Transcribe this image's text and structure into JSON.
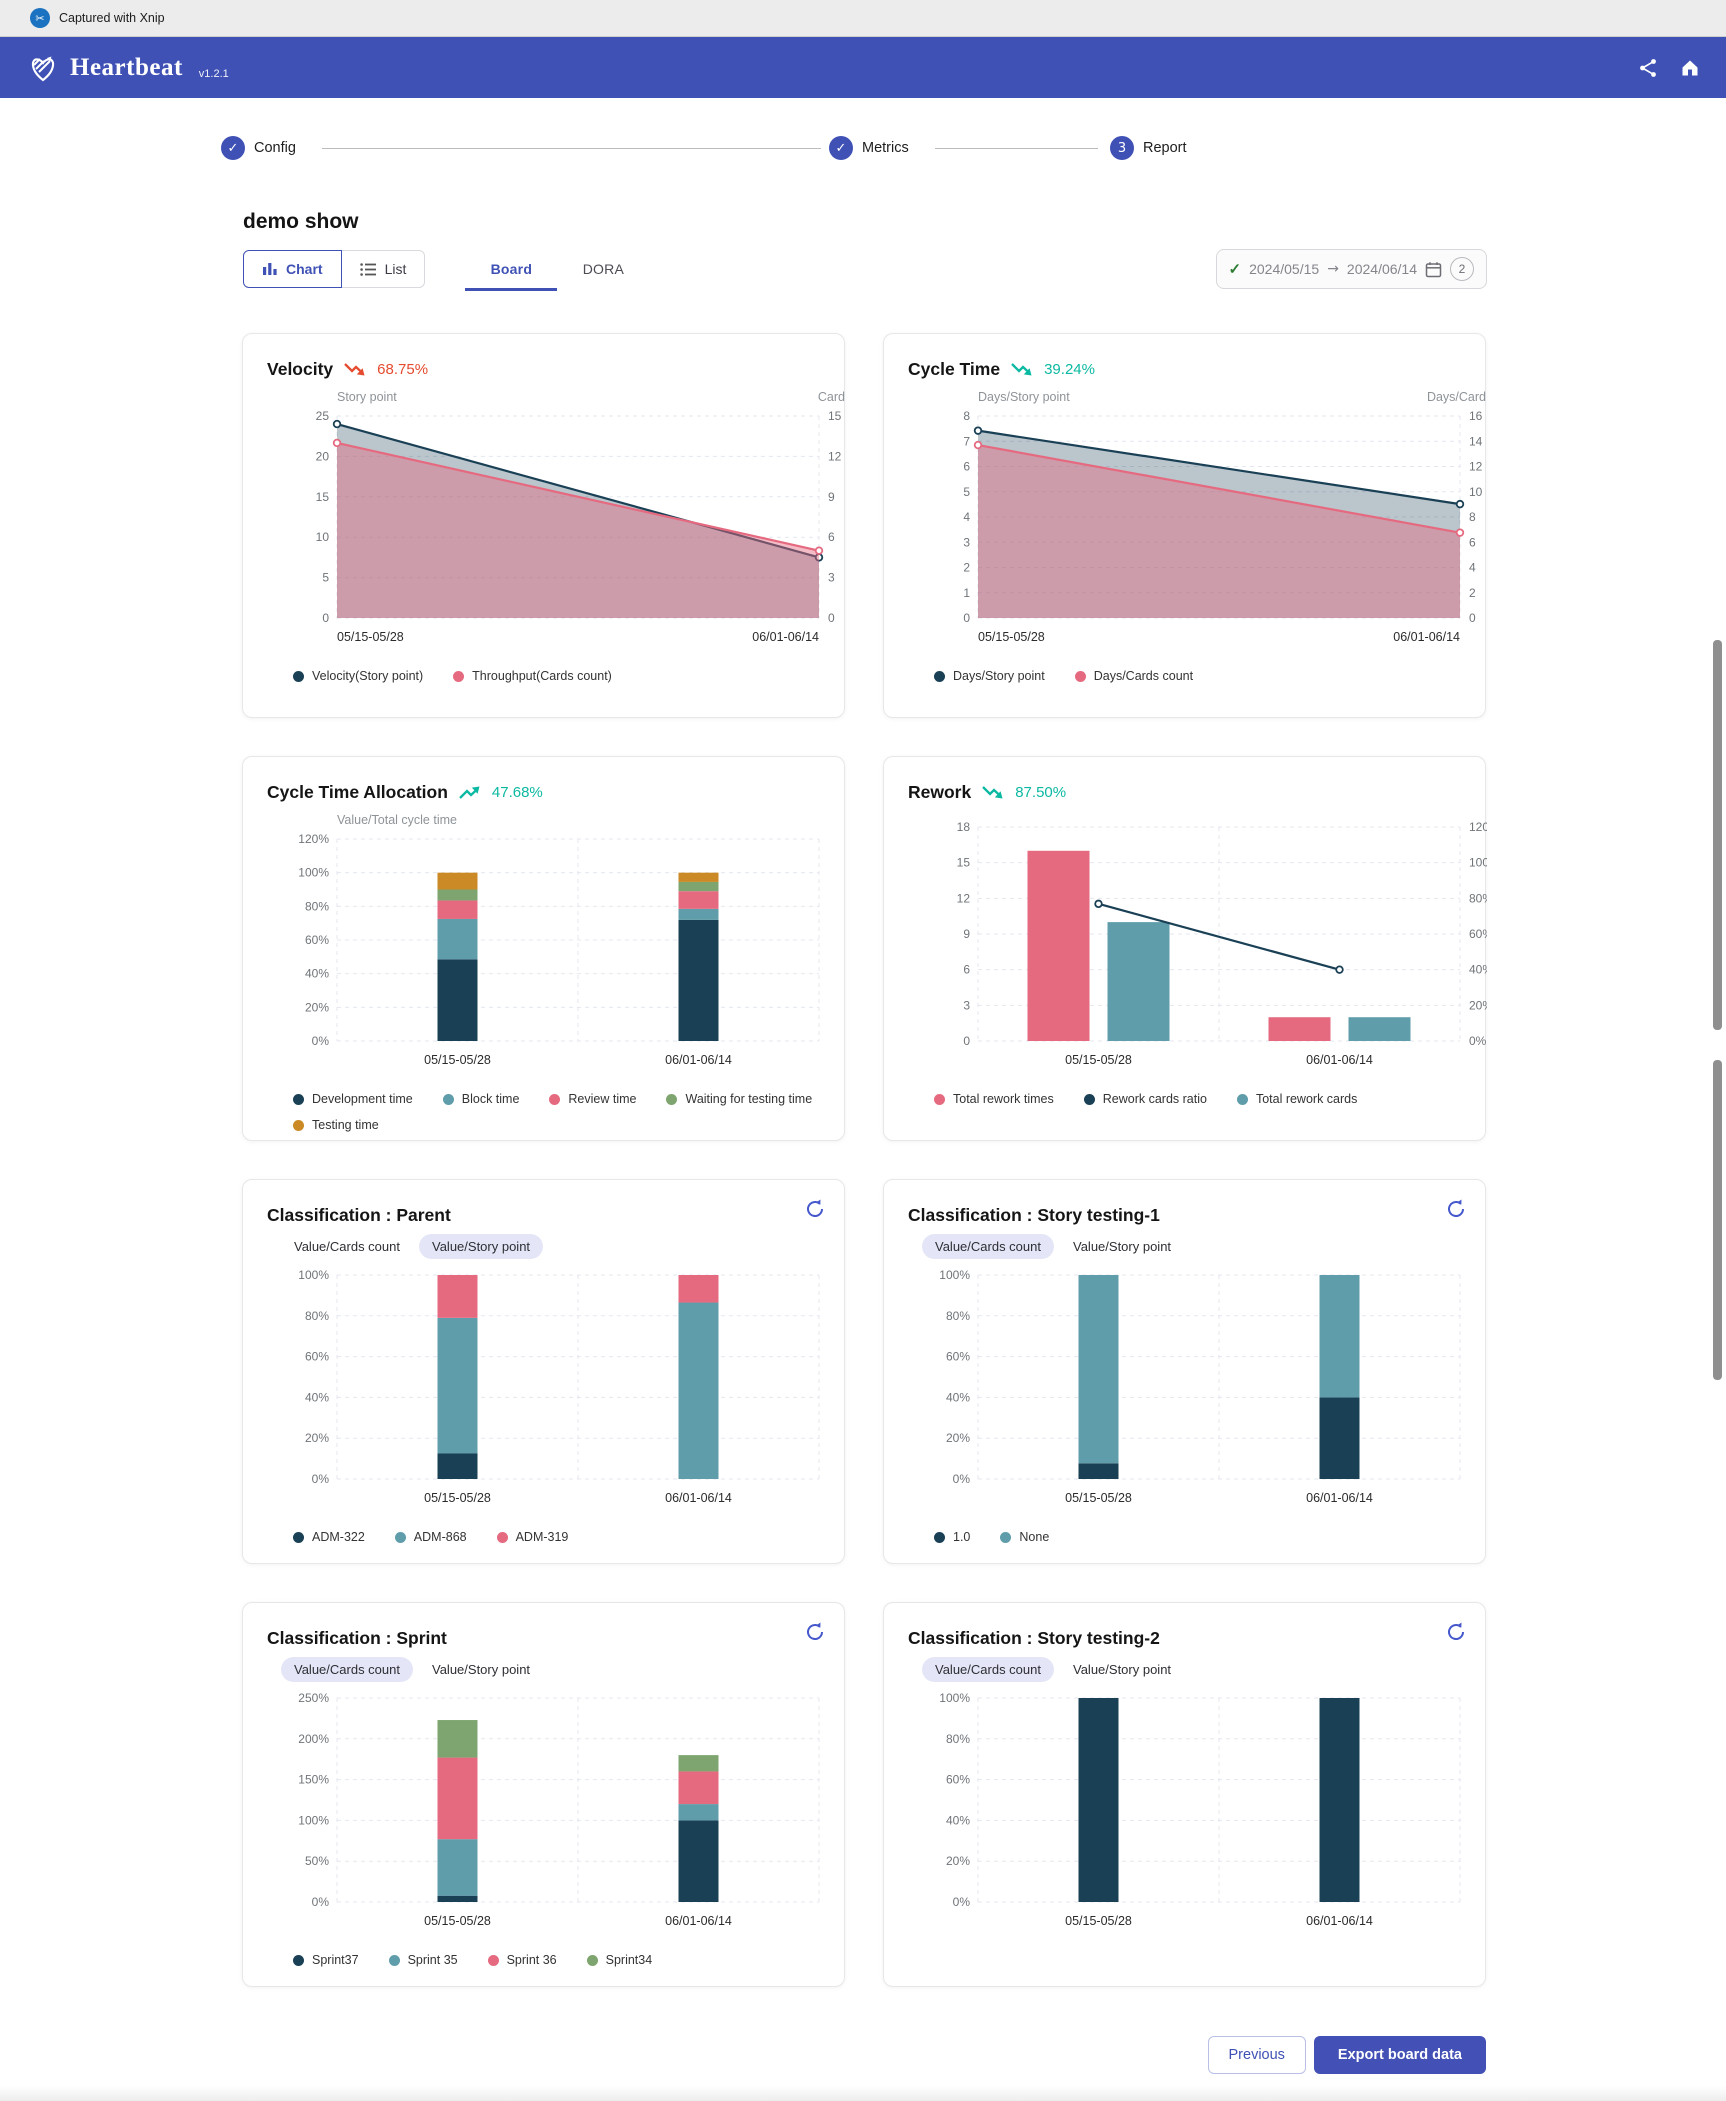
{
  "window": {
    "capture_label": "Captured with Xnip",
    "capture_icon": "✂"
  },
  "header": {
    "app_name": "Heartbeat",
    "version": "v1.2.1"
  },
  "stepper": {
    "steps": [
      {
        "label": "Config",
        "state": "done",
        "icon": "✓"
      },
      {
        "label": "Metrics",
        "state": "done",
        "icon": "✓"
      },
      {
        "label": "Report",
        "state": "active",
        "icon": "3"
      }
    ]
  },
  "page": {
    "title": "demo show"
  },
  "toolbar": {
    "view_toggle": [
      {
        "label": "Chart",
        "selected": true
      },
      {
        "label": "List",
        "selected": false
      }
    ],
    "tabs": [
      {
        "label": "Board",
        "selected": true
      },
      {
        "label": "DORA",
        "selected": false
      }
    ],
    "date_range": {
      "check_icon": "✓",
      "start": "2024/05/15",
      "separator": "→",
      "end": "2024/06/14",
      "badge": "2"
    }
  },
  "footer": {
    "previous": "Previous",
    "export": "Export board data"
  },
  "palette": {
    "navy": "#1a4056",
    "teal": "#5f9dab",
    "pink": "#e56a80",
    "green": "#7ea56f",
    "gold": "#cb8a25",
    "indigo": "#3f51b5",
    "trend_green": "#0bb9a2",
    "trend_red": "#e54b2f"
  },
  "charts": [
    {
      "id": "velocity",
      "kind": "area",
      "title": "Velocity",
      "trend": {
        "direction": "down",
        "value": "68.75%",
        "color": "#e54b2f"
      },
      "chart_data": {
        "type": "area",
        "categories": [
          "05/15-05/28",
          "06/01-06/14"
        ],
        "left_axis": {
          "title": "Story point",
          "max": 25,
          "ticks": [
            0,
            5,
            10,
            15,
            20,
            25
          ]
        },
        "right_axis": {
          "title": "Card",
          "max": 15,
          "ticks": [
            0,
            3,
            6,
            9,
            12,
            15
          ]
        },
        "series": [
          {
            "name": "Velocity(Story point)",
            "axis": "left",
            "color": "#1a4056",
            "fill": "rgba(26,64,86,0.30)",
            "values": [
              24,
              7.5
            ]
          },
          {
            "name": "Throughput(Cards count)",
            "axis": "right",
            "color": "#e56a80",
            "fill": "rgba(229,106,128,0.45)",
            "values": [
              13,
              5
            ]
          }
        ]
      },
      "legend": [
        {
          "label": "Velocity(Story point)",
          "color": "#1a4056"
        },
        {
          "label": "Throughput(Cards count)",
          "color": "#e56a80"
        }
      ]
    },
    {
      "id": "cycle-time",
      "kind": "area",
      "title": "Cycle Time",
      "trend": {
        "direction": "down",
        "value": "39.24%",
        "color": "#0bb9a2"
      },
      "chart_data": {
        "type": "area",
        "categories": [
          "05/15-05/28",
          "06/01-06/14"
        ],
        "left_axis": {
          "title": "Days/Story point",
          "max": 8,
          "ticks": [
            0,
            1,
            2,
            3,
            4,
            5,
            6,
            7,
            8
          ]
        },
        "right_axis": {
          "title": "Days/Card",
          "max": 16,
          "ticks": [
            0,
            2,
            4,
            6,
            8,
            10,
            12,
            14,
            16
          ]
        },
        "series": [
          {
            "name": "Days/Story point",
            "axis": "left",
            "color": "#1a4056",
            "fill": "rgba(26,64,86,0.30)",
            "values": [
              7.42,
              4.51
            ]
          },
          {
            "name": "Days/Cards count",
            "axis": "right",
            "color": "#e56a80",
            "fill": "rgba(229,106,128,0.45)",
            "values": [
              13.7,
              6.76
            ]
          }
        ]
      },
      "legend": [
        {
          "label": "Days/Story point",
          "color": "#1a4056"
        },
        {
          "label": "Days/Cards count",
          "color": "#e56a80"
        }
      ]
    },
    {
      "id": "cycle-time-allocation",
      "kind": "stack",
      "title": "Cycle Time Allocation",
      "trend": {
        "direction": "up",
        "value": "47.68%",
        "color": "#0bb9a2"
      },
      "chart_data": {
        "type": "stacked-bar",
        "axis_title": "Value/Total cycle time",
        "categories": [
          "05/15-05/28",
          "06/01-06/14"
        ],
        "y_ticks": [
          0,
          20,
          40,
          60,
          80,
          100,
          120
        ],
        "y_max": 120,
        "unit": "%",
        "series": [
          {
            "name": "Development time",
            "color": "#1a4056",
            "values": [
              48.5,
              72
            ]
          },
          {
            "name": "Block time",
            "color": "#5f9dab",
            "values": [
              24,
              6.5
            ]
          },
          {
            "name": "Review time",
            "color": "#e56a80",
            "values": [
              11,
              10.5
            ]
          },
          {
            "name": "Waiting for testing time",
            "color": "#7ea56f",
            "values": [
              6.5,
              5.5
            ]
          },
          {
            "name": "Testing time",
            "color": "#cb8a25",
            "values": [
              10,
              5.5
            ]
          }
        ]
      },
      "legend": [
        {
          "label": "Development time",
          "color": "#1a4056"
        },
        {
          "label": "Block time",
          "color": "#5f9dab"
        },
        {
          "label": "Review time",
          "color": "#e56a80"
        },
        {
          "label": "Waiting for testing time",
          "color": "#7ea56f"
        },
        {
          "label": "Testing time",
          "color": "#cb8a25"
        }
      ]
    },
    {
      "id": "rework",
      "kind": "rework",
      "title": "Rework",
      "trend": {
        "direction": "down",
        "value": "87.50%",
        "color": "#0bb9a2"
      },
      "chart_data": {
        "type": "bar+line",
        "categories": [
          "05/15-05/28",
          "06/01-06/14"
        ],
        "left_axis": {
          "max": 18,
          "ticks": [
            0,
            3,
            6,
            9,
            12,
            15,
            18
          ]
        },
        "right_axis": {
          "max": 120,
          "ticks": [
            0,
            20,
            40,
            60,
            80,
            100,
            120
          ],
          "unit": "%"
        },
        "bar_series": [
          {
            "name": "Total rework times",
            "color": "#e56a80",
            "values": [
              16,
              2
            ]
          },
          {
            "name": "Total rework cards",
            "color": "#5f9dab",
            "values": [
              10,
              2
            ]
          }
        ],
        "line_series": {
          "name": "Rework cards ratio",
          "color": "#1a4056",
          "axis": "right",
          "values": [
            76.9,
            40
          ]
        }
      },
      "legend": [
        {
          "label": "Total rework times",
          "color": "#e56a80"
        },
        {
          "label": "Rework cards ratio",
          "color": "#1a4056"
        },
        {
          "label": "Total rework cards",
          "color": "#5f9dab"
        }
      ]
    },
    {
      "id": "classification-parent",
      "kind": "stack",
      "title": "Classification : Parent",
      "refresh": true,
      "tabs": [
        {
          "label": "Value/Cards count",
          "selected": false
        },
        {
          "label": "Value/Story point",
          "selected": true
        }
      ],
      "chart_data": {
        "type": "stacked-bar",
        "categories": [
          "05/15-05/28",
          "06/01-06/14"
        ],
        "y_ticks": [
          0,
          20,
          40,
          60,
          80,
          100
        ],
        "y_max": 100,
        "unit": "%",
        "series": [
          {
            "name": "ADM-322",
            "color": "#1a4056",
            "values": [
              12.5,
              0
            ]
          },
          {
            "name": "ADM-868",
            "color": "#5f9dab",
            "values": [
              66.5,
              86.5
            ]
          },
          {
            "name": "ADM-319",
            "color": "#e56a80",
            "values": [
              21,
              13.5
            ]
          }
        ]
      },
      "legend": [
        {
          "label": "ADM-322",
          "color": "#1a4056"
        },
        {
          "label": "ADM-868",
          "color": "#5f9dab"
        },
        {
          "label": "ADM-319",
          "color": "#e56a80"
        }
      ]
    },
    {
      "id": "classification-story-testing-1",
      "kind": "stack",
      "title": "Classification : Story testing-1",
      "refresh": true,
      "tabs": [
        {
          "label": "Value/Cards count",
          "selected": true
        },
        {
          "label": "Value/Story point",
          "selected": false
        }
      ],
      "chart_data": {
        "type": "stacked-bar",
        "categories": [
          "05/15-05/28",
          "06/01-06/14"
        ],
        "y_ticks": [
          0,
          20,
          40,
          60,
          80,
          100
        ],
        "y_max": 100,
        "unit": "%",
        "series": [
          {
            "name": "1.0",
            "color": "#1a4056",
            "values": [
              7.7,
              40
            ]
          },
          {
            "name": "None",
            "color": "#5f9dab",
            "values": [
              92.3,
              60
            ]
          }
        ]
      },
      "legend": [
        {
          "label": "1.0",
          "color": "#1a4056"
        },
        {
          "label": "None",
          "color": "#5f9dab"
        }
      ]
    },
    {
      "id": "classification-sprint",
      "kind": "stack",
      "title": "Classification : Sprint",
      "refresh": true,
      "tabs": [
        {
          "label": "Value/Cards count",
          "selected": true
        },
        {
          "label": "Value/Story point",
          "selected": false
        }
      ],
      "chart_data": {
        "type": "stacked-bar",
        "categories": [
          "05/15-05/28",
          "06/01-06/14"
        ],
        "y_ticks": [
          0,
          50,
          100,
          150,
          200,
          250
        ],
        "y_max": 250,
        "unit": "%",
        "series": [
          {
            "name": "Sprint37",
            "color": "#1a4056",
            "values": [
              7.7,
              100
            ]
          },
          {
            "name": "Sprint 35",
            "color": "#5f9dab",
            "values": [
              69.3,
              20
            ]
          },
          {
            "name": "Sprint 36",
            "color": "#e56a80",
            "values": [
              100,
              40
            ]
          },
          {
            "name": "Sprint34",
            "color": "#7ea56f",
            "values": [
              46,
              20
            ]
          }
        ]
      },
      "legend": [
        {
          "label": "Sprint37",
          "color": "#1a4056"
        },
        {
          "label": "Sprint 35",
          "color": "#5f9dab"
        },
        {
          "label": "Sprint 36",
          "color": "#e56a80"
        },
        {
          "label": "Sprint34",
          "color": "#7ea56f"
        }
      ]
    },
    {
      "id": "classification-story-testing-2",
      "kind": "stack",
      "title": "Classification : Story testing-2",
      "refresh": true,
      "tabs": [
        {
          "label": "Value/Cards count",
          "selected": true
        },
        {
          "label": "Value/Story point",
          "selected": false
        }
      ],
      "chart_data": {
        "type": "stacked-bar",
        "categories": [
          "05/15-05/28",
          "06/01-06/14"
        ],
        "y_ticks": [
          0,
          20,
          40,
          60,
          80,
          100
        ],
        "y_max": 100,
        "unit": "%",
        "series": [
          {
            "name": "",
            "color": "#1a4056",
            "values": [
              100,
              100
            ]
          }
        ]
      },
      "legend": []
    }
  ]
}
